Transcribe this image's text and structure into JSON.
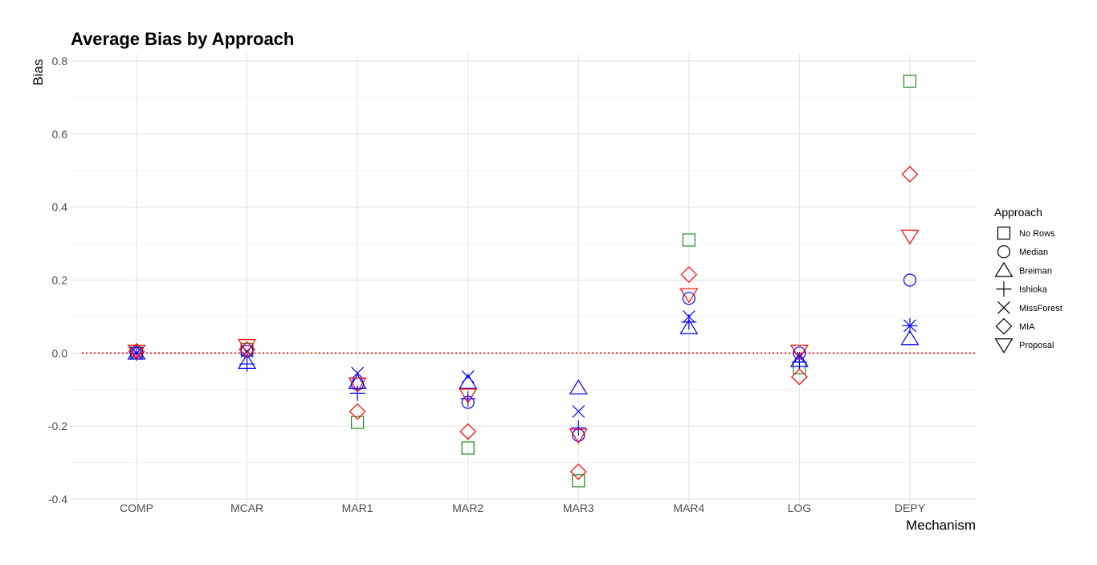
{
  "chart_data": {
    "type": "scatter",
    "title": "Average Bias by Approach",
    "xlabel": "Mechanism",
    "ylabel": "Bias",
    "categories": [
      "COMP",
      "MCAR",
      "MAR1",
      "MAR2",
      "MAR3",
      "MAR4",
      "LOG",
      "DEPY"
    ],
    "ylim": [
      -0.4,
      0.8
    ],
    "yticks": [
      -0.4,
      -0.2,
      0.0,
      0.2,
      0.4,
      0.6,
      0.8
    ],
    "ytick_labels": [
      "-0.4",
      "-0.2",
      "0.0",
      "0.2",
      "0.4",
      "0.6",
      "0.8"
    ],
    "grid": true,
    "reference_line": {
      "y": 0.0,
      "style": "dotted",
      "color": "#ff0000"
    },
    "legend": {
      "title": "Approach",
      "position": "right"
    },
    "series": [
      {
        "name": "No Rows",
        "shape": "square",
        "color": "#228B22",
        "values": [
          0.0,
          0.01,
          -0.19,
          -0.26,
          -0.35,
          0.31,
          -0.04,
          0.745
        ]
      },
      {
        "name": "Median",
        "shape": "circle",
        "color": "#0000ff",
        "values": [
          0.0,
          0.005,
          -0.085,
          -0.135,
          -0.225,
          0.15,
          0.0,
          0.2
        ]
      },
      {
        "name": "Breiman",
        "shape": "triangle-up",
        "color": "#0000ff",
        "values": [
          0.0,
          -0.025,
          -0.08,
          -0.08,
          -0.095,
          0.07,
          -0.02,
          0.04
        ]
      },
      {
        "name": "Ishioka",
        "shape": "plus",
        "color": "#0000ff",
        "values": [
          0.0,
          -0.03,
          -0.11,
          -0.125,
          -0.205,
          0.085,
          -0.025,
          0.075
        ]
      },
      {
        "name": "MissForest",
        "shape": "cross",
        "color": "#0000ff",
        "values": [
          0.0,
          0.005,
          -0.055,
          -0.065,
          -0.16,
          0.1,
          -0.01,
          0.075
        ]
      },
      {
        "name": "MIA",
        "shape": "diamond",
        "color": "#ff0000",
        "values": [
          0.005,
          0.01,
          -0.16,
          -0.215,
          -0.325,
          0.215,
          -0.065,
          0.49
        ]
      },
      {
        "name": "Proposal",
        "shape": "triangle-down",
        "color": "#ff0000",
        "values": [
          0.005,
          0.02,
          -0.085,
          -0.115,
          -0.225,
          0.16,
          0.005,
          0.32
        ]
      }
    ]
  }
}
